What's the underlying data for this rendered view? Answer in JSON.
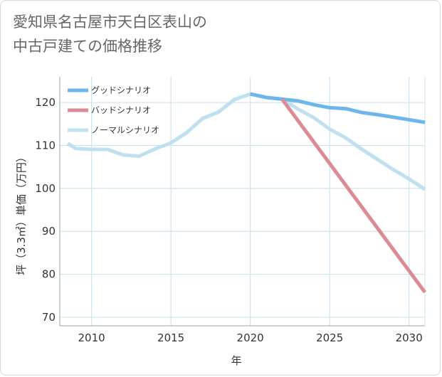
{
  "chart_data": {
    "type": "line",
    "title_lines": [
      "愛知県名古屋市天白区表山の",
      "中古戸建ての価格推移"
    ],
    "xlabel": "年",
    "ylabel": "坪（3.3㎡）単価（万円）",
    "xlim": [
      2008,
      2031
    ],
    "ylim": [
      68,
      126
    ],
    "x_ticks": [
      2010,
      2015,
      2020,
      2025,
      2030
    ],
    "y_ticks": [
      70,
      80,
      90,
      100,
      110,
      120
    ],
    "grid": true,
    "legend_position": "top-left",
    "series": [
      {
        "name": "グッドシナリオ",
        "color": "#6cb6ec",
        "x": [
          2020,
          2021,
          2022,
          2023,
          2024,
          2025,
          2026,
          2027,
          2028,
          2029,
          2030,
          2031
        ],
        "y": [
          122,
          121.2,
          120.8,
          120.4,
          119.5,
          118.8,
          118.6,
          117.7,
          117.2,
          116.6,
          116.0,
          115.4
        ]
      },
      {
        "name": "バッドシナリオ",
        "color": "#dc8a93",
        "x": [
          2022,
          2031
        ],
        "y": [
          120.8,
          75.8
        ]
      },
      {
        "name": "ノーマルシナリオ",
        "color": "#bfe0ef",
        "x": [
          2008.5,
          2009,
          2010,
          2011,
          2012,
          2013,
          2014,
          2015,
          2016,
          2017,
          2018,
          2019,
          2020,
          2021,
          2022,
          2023,
          2024,
          2025,
          2026,
          2027,
          2028,
          2029,
          2030,
          2031
        ],
        "y": [
          110.5,
          109.3,
          109.1,
          109.1,
          107.8,
          107.5,
          109.2,
          110.6,
          113.0,
          116.3,
          117.8,
          120.7,
          122.0,
          121.2,
          120.8,
          118.5,
          116.5,
          113.8,
          111.8,
          109.2,
          106.8,
          104.4,
          102.2,
          99.8
        ]
      }
    ]
  }
}
